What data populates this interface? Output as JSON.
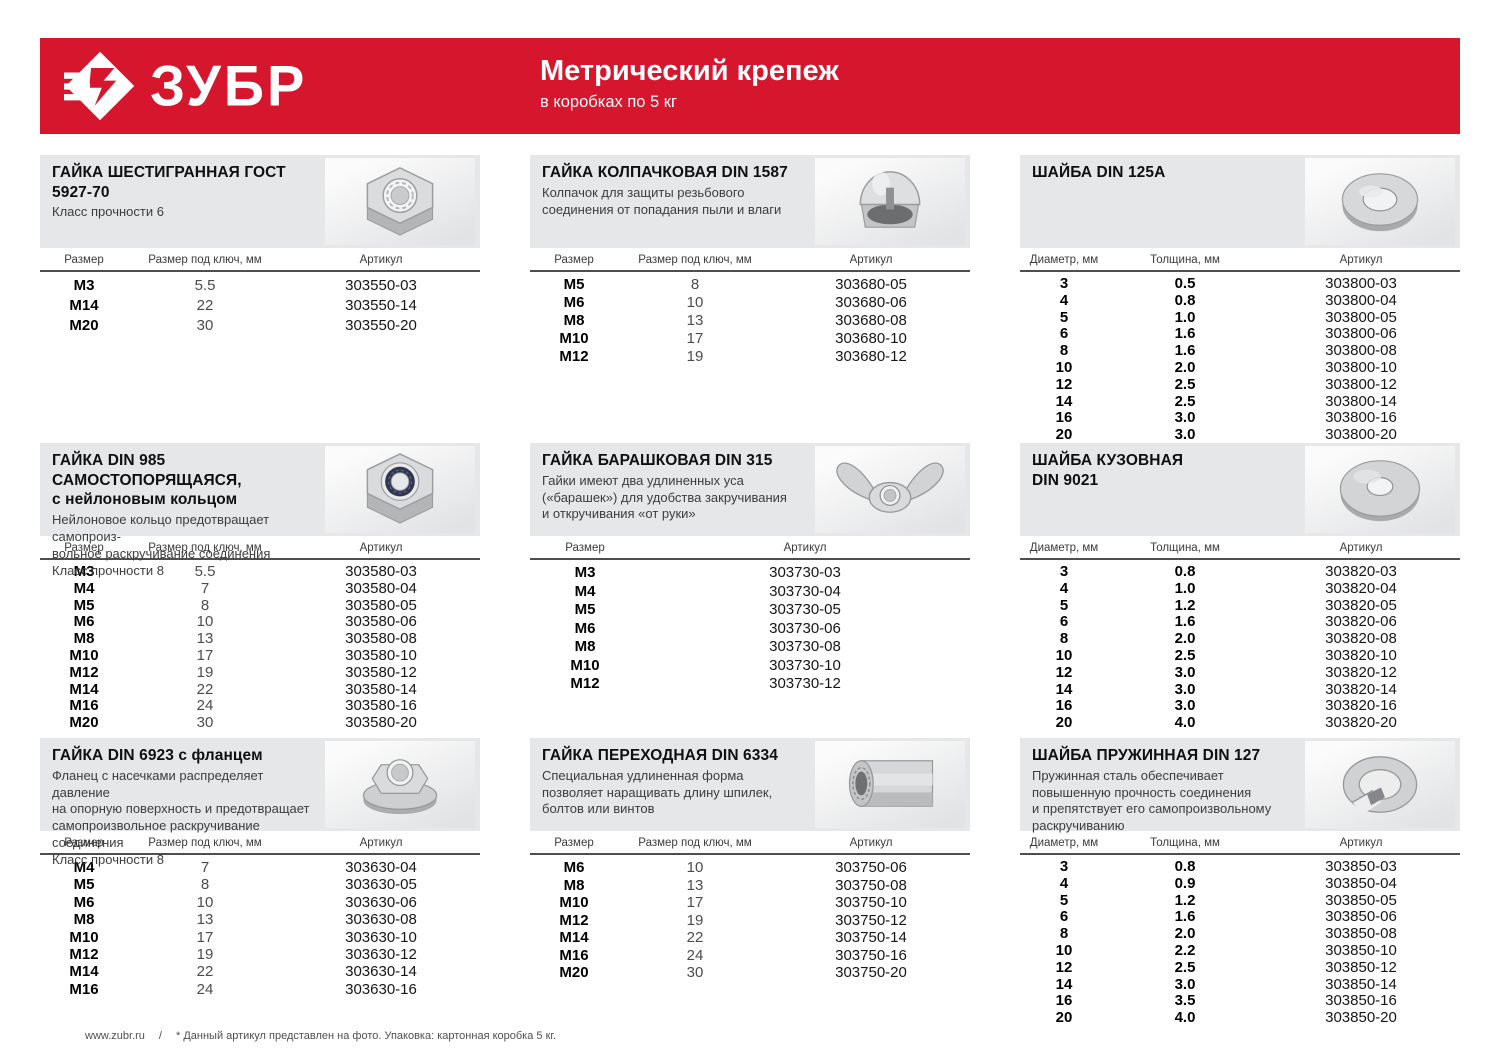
{
  "header": {
    "logo_text": "ЗУБР",
    "title": "Метрический крепеж",
    "subtitle": "в коробках по 5 кг",
    "banner_color": "#d5162c"
  },
  "footer": {
    "site": "www.zubr.ru",
    "separator": "/",
    "note": "* Данный артикул представлен на фото. Упаковка: картонная коробка 5 кг."
  },
  "sections": [
    {
      "title_lines": [
        "ГАЙКА ШЕСТИГРАННАЯ ГОСТ 5927-70"
      ],
      "description_lines": [
        "Класс прочности 6"
      ],
      "image": "hex-nut",
      "columns": [
        "Размер",
        "Размер под ключ, мм",
        "Артикул"
      ],
      "rows": [
        [
          "M3",
          "5.5",
          "303550-03"
        ],
        [
          "M14",
          "22",
          "303550-14"
        ],
        [
          "M20",
          "30",
          "303550-20"
        ]
      ]
    },
    {
      "title_lines": [
        "ГАЙКА КОЛПАЧКОВАЯ DIN 1587"
      ],
      "description_lines": [
        "Колпачок для защиты резьбового",
        "соединения от попадания пыли и влаги"
      ],
      "image": "cap-nut",
      "columns": [
        "Размер",
        "Размер под ключ, мм",
        "Артикул"
      ],
      "rows": [
        [
          "M5",
          "8",
          "303680-05"
        ],
        [
          "M6",
          "10",
          "303680-06"
        ],
        [
          "M8",
          "13",
          "303680-08"
        ],
        [
          "M10",
          "17",
          "303680-10"
        ],
        [
          "M12",
          "19",
          "303680-12"
        ]
      ]
    },
    {
      "title_lines": [
        "ШАЙБА DIN 125А"
      ],
      "description_lines": [],
      "image": "flat-washer",
      "columns": [
        "Диаметр, мм",
        "Толщина, мм",
        "Артикул"
      ],
      "rows": [
        [
          "3",
          "0.5",
          "303800-03"
        ],
        [
          "4",
          "0.8",
          "303800-04"
        ],
        [
          "5",
          "1.0",
          "303800-05"
        ],
        [
          "6",
          "1.6",
          "303800-06"
        ],
        [
          "8",
          "1.6",
          "303800-08"
        ],
        [
          "10",
          "2.0",
          "303800-10"
        ],
        [
          "12",
          "2.5",
          "303800-12"
        ],
        [
          "14",
          "2.5",
          "303800-14"
        ],
        [
          "16",
          "3.0",
          "303800-16"
        ],
        [
          "20",
          "3.0",
          "303800-20"
        ]
      ]
    },
    {
      "title_lines": [
        "ГАЙКА DIN 985 САМОСТОПОРЯЩАЯСЯ,",
        "с нейлоновым кольцом"
      ],
      "description_lines": [
        "Нейлоновое кольцо предотвращает самопроиз-",
        "вольное раскручивание соединения",
        "Класс прочности 8"
      ],
      "image": "self-locking-nut",
      "columns": [
        "Размер",
        "Размер под ключ, мм",
        "Артикул"
      ],
      "rows": [
        [
          "M3",
          "5.5",
          "303580-03"
        ],
        [
          "M4",
          "7",
          "303580-04"
        ],
        [
          "M5",
          "8",
          "303580-05"
        ],
        [
          "M6",
          "10",
          "303580-06"
        ],
        [
          "M8",
          "13",
          "303580-08"
        ],
        [
          "M10",
          "17",
          "303580-10"
        ],
        [
          "M12",
          "19",
          "303580-12"
        ],
        [
          "M14",
          "22",
          "303580-14"
        ],
        [
          "M16",
          "24",
          "303580-16"
        ],
        [
          "M20",
          "30",
          "303580-20"
        ]
      ]
    },
    {
      "title_lines": [
        "ГАЙКА БАРАШКОВАЯ DIN 315"
      ],
      "description_lines": [
        "Гайки имеют два удлиненных уса",
        "(«барашек») для удобства закручивания",
        "и откручивания «от руки»"
      ],
      "image": "wing-nut",
      "columns": [
        "Размер",
        "Артикул"
      ],
      "rows": [
        [
          "M3",
          "303730-03"
        ],
        [
          "M4",
          "303730-04"
        ],
        [
          "M5",
          "303730-05"
        ],
        [
          "M6",
          "303730-06"
        ],
        [
          "M8",
          "303730-08"
        ],
        [
          "M10",
          "303730-10"
        ],
        [
          "M12",
          "303730-12"
        ]
      ]
    },
    {
      "title_lines": [
        "ШАЙБА КУЗОВНАЯ",
        "DIN 9021"
      ],
      "description_lines": [],
      "image": "fender-washer",
      "columns": [
        "Диаметр, мм",
        "Толщина, мм",
        "Артикул"
      ],
      "rows": [
        [
          "3",
          "0.8",
          "303820-03"
        ],
        [
          "4",
          "1.0",
          "303820-04"
        ],
        [
          "5",
          "1.2",
          "303820-05"
        ],
        [
          "6",
          "1.6",
          "303820-06"
        ],
        [
          "8",
          "2.0",
          "303820-08"
        ],
        [
          "10",
          "2.5",
          "303820-10"
        ],
        [
          "12",
          "3.0",
          "303820-12"
        ],
        [
          "14",
          "3.0",
          "303820-14"
        ],
        [
          "16",
          "3.0",
          "303820-16"
        ],
        [
          "20",
          "4.0",
          "303820-20"
        ]
      ]
    },
    {
      "title_lines": [
        "ГАЙКА DIN 6923 с фланцем"
      ],
      "description_lines": [
        "Фланец с насечками распределяет давление",
        "на опорную поверхность и предотвращает",
        "самопроизвольное раскручивание соединения",
        "Класс прочности 8"
      ],
      "image": "flange-nut",
      "columns": [
        "Размер",
        "Размер под ключ, мм",
        "Артикул"
      ],
      "rows": [
        [
          "M4",
          "7",
          "303630-04"
        ],
        [
          "M5",
          "8",
          "303630-05"
        ],
        [
          "M6",
          "10",
          "303630-06"
        ],
        [
          "M8",
          "13",
          "303630-08"
        ],
        [
          "M10",
          "17",
          "303630-10"
        ],
        [
          "M12",
          "19",
          "303630-12"
        ],
        [
          "M14",
          "22",
          "303630-14"
        ],
        [
          "M16",
          "24",
          "303630-16"
        ]
      ]
    },
    {
      "title_lines": [
        "ГАЙКА ПЕРЕХОДНАЯ DIN 6334"
      ],
      "description_lines": [
        "Специальная удлиненная форма",
        "позволяет наращивать длину шпилек,",
        "болтов или винтов"
      ],
      "image": "coupling-nut",
      "columns": [
        "Размер",
        "Размер под ключ, мм",
        "Артикул"
      ],
      "rows": [
        [
          "M6",
          "10",
          "303750-06"
        ],
        [
          "M8",
          "13",
          "303750-08"
        ],
        [
          "M10",
          "17",
          "303750-10"
        ],
        [
          "M12",
          "19",
          "303750-12"
        ],
        [
          "M14",
          "22",
          "303750-14"
        ],
        [
          "M16",
          "24",
          "303750-16"
        ],
        [
          "M20",
          "30",
          "303750-20"
        ]
      ]
    },
    {
      "title_lines": [
        "ШАЙБА ПРУЖИННАЯ DIN 127"
      ],
      "description_lines": [
        "Пружинная сталь обеспечивает",
        "повышенную прочность соединения",
        "и препятствует его самопроизвольному",
        "раскручиванию"
      ],
      "image": "spring-washer",
      "columns": [
        "Диаметр, мм",
        "Толщина, мм",
        "Артикул"
      ],
      "rows": [
        [
          "3",
          "0.8",
          "303850-03"
        ],
        [
          "4",
          "0.9",
          "303850-04"
        ],
        [
          "5",
          "1.2",
          "303850-05"
        ],
        [
          "6",
          "1.6",
          "303850-06"
        ],
        [
          "8",
          "2.0",
          "303850-08"
        ],
        [
          "10",
          "2.2",
          "303850-10"
        ],
        [
          "12",
          "2.5",
          "303850-12"
        ],
        [
          "14",
          "3.0",
          "303850-14"
        ],
        [
          "16",
          "3.5",
          "303850-16"
        ],
        [
          "20",
          "4.0",
          "303850-20"
        ]
      ]
    }
  ]
}
